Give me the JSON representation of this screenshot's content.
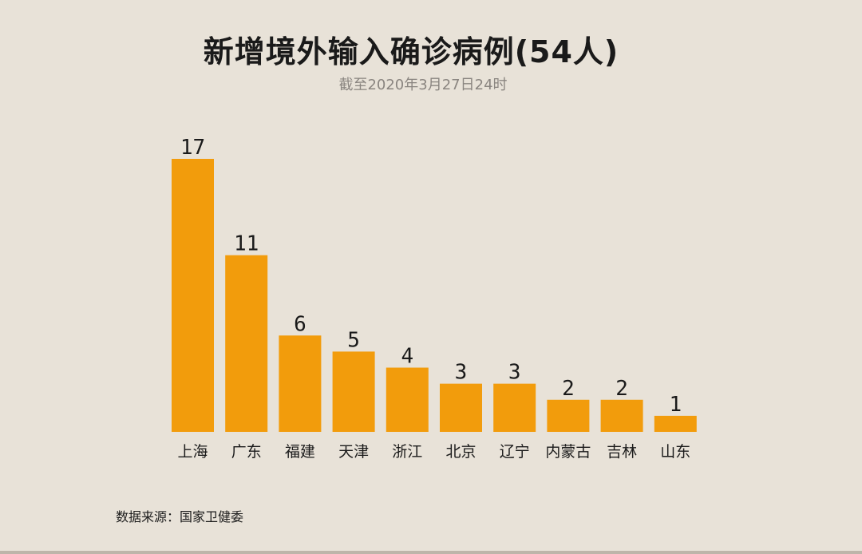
{
  "title": "新增境外输入确诊病例(54人)",
  "subtitle": "截至2020年3月27日24时",
  "source": "数据来源：国家卫健委",
  "colors": {
    "bar": "#f29c0c",
    "background": "#e8e2d8",
    "text": "#1a1a1a",
    "subtitle": "#8a8580"
  },
  "chart_data": {
    "type": "bar",
    "title": "新增境外输入确诊病例(54人)",
    "subtitle": "截至2020年3月27日24时",
    "categories": [
      "上海",
      "广东",
      "福建",
      "天津",
      "浙江",
      "北京",
      "辽宁",
      "内蒙古",
      "吉林",
      "山东"
    ],
    "values": [
      17,
      11,
      6,
      5,
      4,
      3,
      3,
      2,
      2,
      1
    ],
    "data_labels": [
      "17",
      "11",
      "6",
      "5",
      "4",
      "3",
      "3",
      "2",
      "2",
      "1"
    ],
    "xlabel": "",
    "ylabel": "",
    "ylim": [
      0,
      17
    ],
    "grid": false,
    "legend": "none"
  }
}
